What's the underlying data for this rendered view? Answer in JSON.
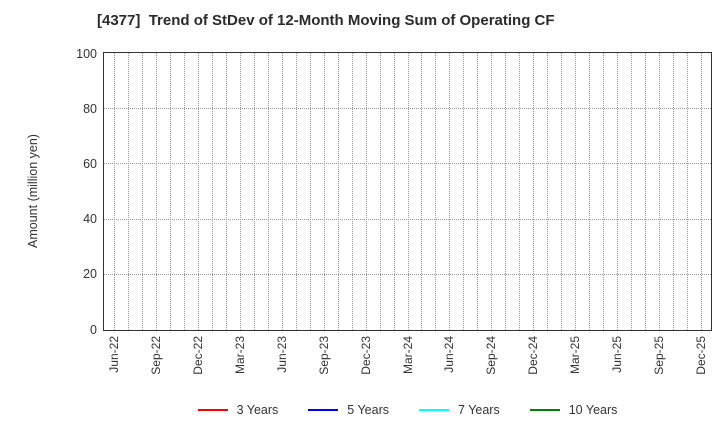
{
  "chart_data": {
    "type": "line",
    "title": "[4377]  Trend of StDev of 12-Month Moving Sum of Operating CF",
    "ylabel": "Amount (million yen)",
    "xlabel": "",
    "ylim": [
      0,
      100
    ],
    "yticks": [
      0,
      20,
      40,
      60,
      80,
      100
    ],
    "x_tick_labels": [
      "Jun-22",
      "Sep-22",
      "Dec-22",
      "Mar-23",
      "Jun-23",
      "Sep-23",
      "Dec-23",
      "Mar-24",
      "Jun-24",
      "Sep-24",
      "Dec-24",
      "Mar-25",
      "Jun-25",
      "Sep-25",
      "Dec-25"
    ],
    "months_between_labeled_ticks": 3,
    "total_month_gridlines": 43,
    "grid": true,
    "x_tick_rotation_degrees": 90,
    "legend_position": "bottom",
    "series": [
      {
        "name": "3 Years",
        "color": "#ff0000",
        "values": []
      },
      {
        "name": "5 Years",
        "color": "#0000ff",
        "values": []
      },
      {
        "name": "7 Years",
        "color": "#00ffff",
        "values": []
      },
      {
        "name": "10 Years",
        "color": "#008000",
        "values": []
      }
    ],
    "colors": {
      "grid": "#999999",
      "axis_border": "#333333",
      "text": "#333333",
      "background": "#ffffff"
    }
  }
}
